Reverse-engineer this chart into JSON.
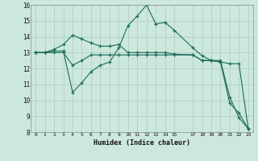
{
  "xlabel": "Humidex (Indice chaleur)",
  "bg_color": "#cce8dd",
  "grid_color": "#aaccbb",
  "line_color": "#1a6b5a",
  "xlim": [
    -0.5,
    23.5
  ],
  "ylim": [
    8,
    16
  ],
  "yticks": [
    8,
    9,
    10,
    11,
    12,
    13,
    14,
    15,
    16
  ],
  "xticks": [
    0,
    1,
    2,
    3,
    4,
    5,
    6,
    7,
    8,
    9,
    10,
    11,
    12,
    13,
    14,
    15,
    17,
    18,
    19,
    20,
    21,
    22,
    23
  ],
  "line1_x": [
    0,
    1,
    2,
    3,
    4,
    5,
    6,
    7,
    8,
    9,
    10,
    11,
    12,
    13,
    14,
    15,
    17,
    18,
    19,
    20,
    21,
    22,
    23
  ],
  "line1_y": [
    13.0,
    13.0,
    13.1,
    13.1,
    10.5,
    11.1,
    11.8,
    12.2,
    12.4,
    13.3,
    14.7,
    15.3,
    16.0,
    14.8,
    14.9,
    14.4,
    13.3,
    12.8,
    12.5,
    12.5,
    10.2,
    8.9,
    8.2
  ],
  "line2_x": [
    0,
    1,
    2,
    3,
    4,
    5,
    6,
    7,
    8,
    9,
    10,
    11,
    12,
    13,
    14,
    15,
    17,
    18,
    19,
    20,
    21,
    22,
    23
  ],
  "line2_y": [
    13.0,
    13.0,
    13.0,
    13.0,
    12.2,
    12.5,
    12.85,
    12.85,
    12.85,
    12.85,
    12.85,
    12.85,
    12.85,
    12.85,
    12.85,
    12.85,
    12.85,
    12.5,
    12.5,
    12.4,
    12.3,
    12.3,
    8.2
  ],
  "line3_x": [
    0,
    1,
    2,
    3,
    4,
    5,
    6,
    7,
    8,
    9,
    10,
    11,
    12,
    13,
    14,
    15,
    17,
    18,
    19,
    20,
    21,
    22,
    23
  ],
  "line3_y": [
    13.0,
    13.0,
    13.2,
    13.5,
    14.1,
    13.85,
    13.6,
    13.4,
    13.4,
    13.5,
    13.0,
    13.0,
    13.0,
    13.0,
    13.0,
    12.9,
    12.85,
    12.5,
    12.5,
    12.4,
    9.8,
    9.2,
    8.2
  ]
}
